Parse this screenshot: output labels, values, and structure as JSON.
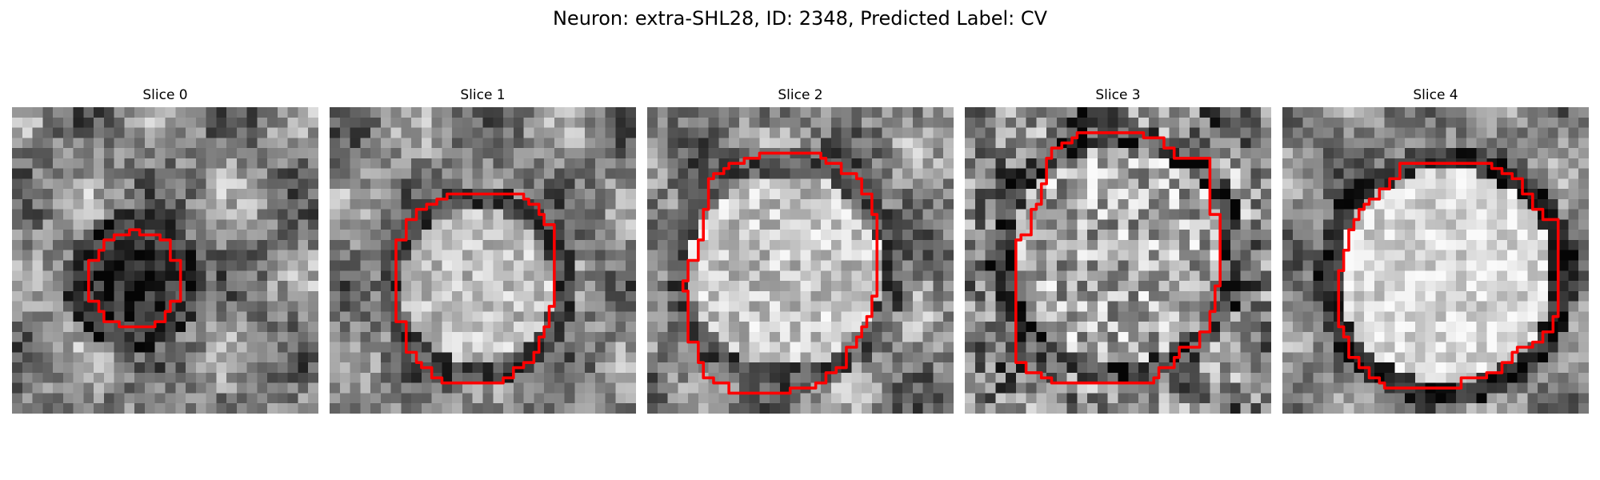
{
  "figure": {
    "title": "Neuron: extra-SHL28, ID: 2348, Predicted Label: CV"
  },
  "outline_color": "#ff0000",
  "panels": [
    {
      "title": "Slice 0"
    },
    {
      "title": "Slice 1"
    },
    {
      "title": "Slice 2"
    },
    {
      "title": "Slice 3"
    },
    {
      "title": "Slice 4"
    }
  ]
}
